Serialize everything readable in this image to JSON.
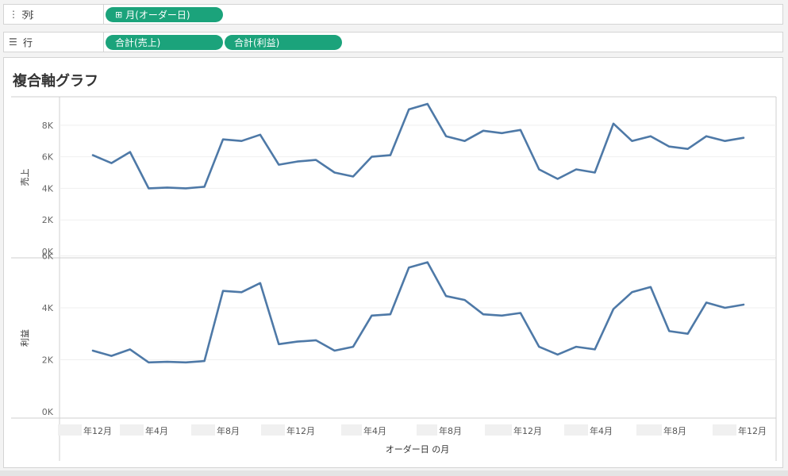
{
  "shelves": {
    "columns": {
      "label": "列",
      "icon": "columns-icon",
      "pills": [
        "月(オーダー日)"
      ]
    },
    "rows": {
      "label": "行",
      "icon": "rows-icon",
      "pills": [
        "合計(売上)",
        "合計(利益)"
      ]
    }
  },
  "sheet": {
    "title": "複合軸グラフ"
  },
  "colors": {
    "line": "#4e79a7",
    "pill": "#1ba37b"
  },
  "chart_data": {
    "type": "line",
    "title": "複合軸グラフ",
    "xlabel": "オーダー日 の月",
    "x_tick_labels": [
      "年12月",
      "年4月",
      "年8月",
      "年12月",
      "年4月",
      "年8月",
      "年12月",
      "年4月",
      "年8月",
      "年12月"
    ],
    "panes": [
      {
        "name": "売上",
        "ylabel": "売上",
        "ylim": [
          0,
          9800
        ],
        "y_ticks": [
          0,
          2000,
          4000,
          6000,
          8000
        ],
        "y_tick_labels": [
          "0K",
          "2K",
          "4K",
          "6K",
          "8K"
        ],
        "values": [
          6100,
          5600,
          6300,
          4000,
          4050,
          4000,
          4100,
          7100,
          7000,
          7400,
          5500,
          5700,
          5800,
          5000,
          4750,
          6000,
          6100,
          9000,
          9350,
          7300,
          7000,
          7650,
          7500,
          7700,
          5200,
          4600,
          5200,
          5000,
          8100,
          7000,
          7300,
          6650,
          6500,
          7300,
          7000,
          7200
        ]
      },
      {
        "name": "利益",
        "ylabel": "利益",
        "ylim": [
          0,
          5800
        ],
        "y_ticks": [
          0,
          2000,
          4000,
          6000
        ],
        "y_tick_labels": [
          "0K",
          "2K",
          "4K",
          "6K"
        ],
        "values": [
          2350,
          2150,
          2400,
          1900,
          1920,
          1900,
          1950,
          4650,
          4600,
          4950,
          2600,
          2700,
          2750,
          2350,
          2500,
          3700,
          3750,
          5550,
          5750,
          4450,
          4300,
          3750,
          3700,
          3800,
          2500,
          2200,
          2500,
          2400,
          3950,
          4600,
          4800,
          3100,
          3000,
          4200,
          4000,
          4120
        ]
      }
    ],
    "grid": true
  }
}
